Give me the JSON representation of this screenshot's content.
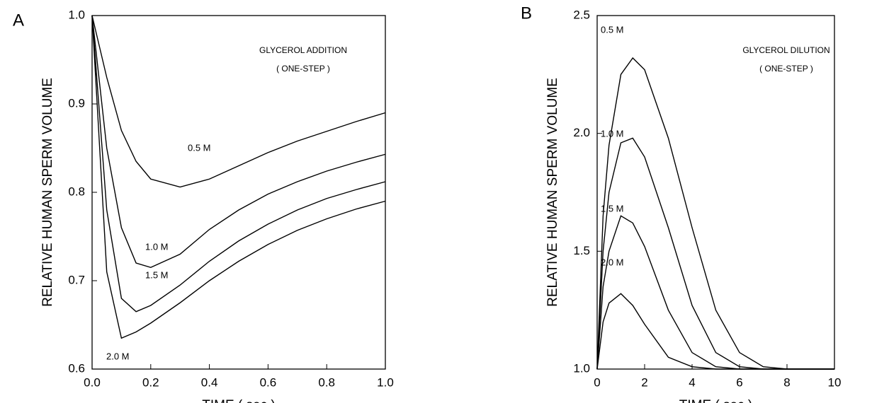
{
  "chart_data": [
    {
      "type": "line",
      "panel_label": "A",
      "annotations": [
        "GLYCEROL ADDITION",
        "( ONE-STEP )"
      ],
      "xlabel": "TIME  ( sec )",
      "ylabel": "RELATIVE HUMAN SPERM VOLUME",
      "xlim": [
        0,
        1
      ],
      "ylim": [
        0.6,
        1
      ],
      "xticks": [
        {
          "value": 0,
          "label": "0.0"
        },
        0.2,
        0.4,
        0.6,
        0.8,
        {
          "value": 1,
          "label": "1.0"
        }
      ],
      "yticks": [
        0.6,
        0.7,
        0.8,
        0.9,
        {
          "value": 1,
          "label": "1.0"
        }
      ],
      "x": [
        0,
        0.05,
        0.1,
        0.15,
        0.2,
        0.3,
        0.4,
        0.5,
        0.6,
        0.7,
        0.8,
        0.9,
        1.0
      ],
      "series": [
        {
          "name": "0.5 M",
          "color": "#000000",
          "values": [
            1.0,
            0.93,
            0.87,
            0.835,
            0.815,
            0.806,
            0.815,
            0.83,
            0.845,
            0.858,
            0.869,
            0.88,
            0.89
          ]
        },
        {
          "name": "1.0 M",
          "color": "#000000",
          "values": [
            1.0,
            0.85,
            0.76,
            0.72,
            0.715,
            0.73,
            0.758,
            0.78,
            0.798,
            0.812,
            0.824,
            0.834,
            0.843
          ]
        },
        {
          "name": "1.5 M",
          "color": "#000000",
          "values": [
            1.0,
            0.78,
            0.68,
            0.665,
            0.672,
            0.695,
            0.722,
            0.745,
            0.764,
            0.78,
            0.793,
            0.803,
            0.812
          ]
        },
        {
          "name": "2.0 M",
          "color": "#000000",
          "values": [
            1.0,
            0.71,
            0.635,
            0.642,
            0.652,
            0.675,
            0.7,
            0.722,
            0.741,
            0.757,
            0.77,
            0.781,
            0.79
          ]
        }
      ]
    },
    {
      "type": "line",
      "panel_label": "B",
      "annotations": [
        "GLYCEROL DILUTION",
        "( ONE-STEP )"
      ],
      "xlabel": "TIME  ( sec )",
      "ylabel": "RELATIVE HUMAN SPERM VOLUME",
      "xlim": [
        0,
        10
      ],
      "ylim": [
        1,
        2.5
      ],
      "xticks": [
        0,
        2,
        4,
        6,
        8,
        10
      ],
      "yticks": [
        {
          "value": 1,
          "label": "1.0"
        },
        1.5,
        {
          "value": 2,
          "label": "2.0"
        },
        2.5
      ],
      "x": [
        0,
        0.25,
        0.5,
        1,
        1.5,
        2,
        3,
        4,
        5,
        6,
        7,
        8,
        9,
        10
      ],
      "series": [
        {
          "name": "0.5 M",
          "color": "#000000",
          "values": [
            1.0,
            1.2,
            1.28,
            1.32,
            1.27,
            1.19,
            1.05,
            1.01,
            1.0,
            1.0,
            1.0,
            1.0,
            1.0,
            1.0
          ]
        },
        {
          "name": "1.0 M",
          "color": "#000000",
          "values": [
            1.0,
            1.35,
            1.5,
            1.65,
            1.62,
            1.52,
            1.25,
            1.07,
            1.01,
            1.0,
            1.0,
            1.0,
            1.0,
            1.0
          ]
        },
        {
          "name": "1.5 M",
          "color": "#000000",
          "values": [
            1.0,
            1.5,
            1.75,
            1.96,
            1.98,
            1.9,
            1.6,
            1.27,
            1.07,
            1.01,
            1.0,
            1.0,
            1.0,
            1.0
          ]
        },
        {
          "name": "2.0 M",
          "color": "#000000",
          "values": [
            1.0,
            1.65,
            1.95,
            2.25,
            2.32,
            2.27,
            1.98,
            1.6,
            1.25,
            1.07,
            1.01,
            1.0,
            1.0,
            1.0
          ]
        }
      ]
    }
  ]
}
